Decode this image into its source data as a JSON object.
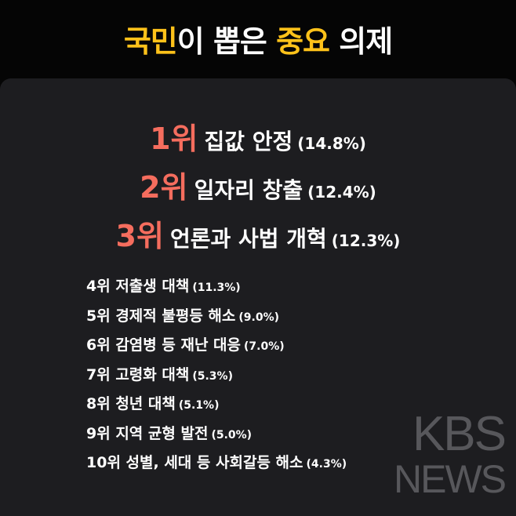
{
  "title": {
    "parts": [
      "국민",
      "이 뽑은 ",
      "중요",
      " 의제"
    ]
  },
  "top": [
    {
      "rank": "1위",
      "label": "집값 안정",
      "share": "(14.8%)"
    },
    {
      "rank": "2위",
      "label": "일자리 창출",
      "share": "(12.4%)"
    },
    {
      "rank": "3위",
      "label": "언론과 사법 개혁",
      "share": "(12.3%)"
    }
  ],
  "rest": [
    {
      "label": "4위 저출생 대책",
      "share": "(11.3%)"
    },
    {
      "label": "5위 경제적 불평등 해소",
      "share": "(9.0%)"
    },
    {
      "label": "6위 감염병 등 재난 대응",
      "share": "(7.0%)"
    },
    {
      "label": "7위 고령화 대책",
      "share": "(5.3%)"
    },
    {
      "label": "8위 청년 대책",
      "share": "(5.1%)"
    },
    {
      "label": "9위 지역 균형 발전",
      "share": "(5.0%)"
    },
    {
      "label": "10위 성별, 세대 등 사회갈등 해소",
      "share": "(4.3%)"
    }
  ],
  "watermark": [
    "KBS",
    "NEWS"
  ]
}
